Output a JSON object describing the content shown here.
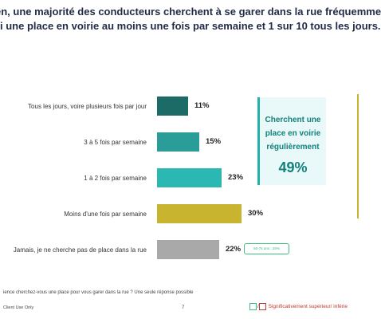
{
  "title": {
    "line1": "en, une majorité des conducteurs cherchent à se garer dans la rue fréquemme",
    "line2": "i une place en voirie au moins une fois par semaine et 1 sur 10 tous les jours."
  },
  "chart_data": {
    "type": "bar",
    "orientation": "horizontal",
    "categories": [
      "Tous les jours, voire plusieurs fois par jour",
      "3 à 5 fois par semaine",
      "1 à 2 fois par semaine",
      "Moins d'une fois par semaine",
      "Jamais, je ne cherche pas de place dans la rue"
    ],
    "values": [
      11,
      15,
      23,
      30,
      22
    ],
    "value_labels": [
      "11%",
      "15%",
      "23%",
      "30%",
      "22%"
    ],
    "colors": [
      "#1d6b66",
      "#2a9d99",
      "#2bb8b3",
      "#c8b42e",
      "#a9a9a9"
    ],
    "xlim": [
      0,
      30
    ],
    "grid": false
  },
  "callout": {
    "text": "Cherchent une place en voirie régulièrement",
    "value": "49%"
  },
  "sig_badge": "60-75 ans : 28%",
  "footnote": "ience cherchez-vous une place pour vous garer dans la rue ? Une seule réponse possible",
  "footer": {
    "left": "Client Use Only",
    "page": "7",
    "legend_text": "Significativement supérieur/ inférie",
    "legend_slash": "/"
  }
}
